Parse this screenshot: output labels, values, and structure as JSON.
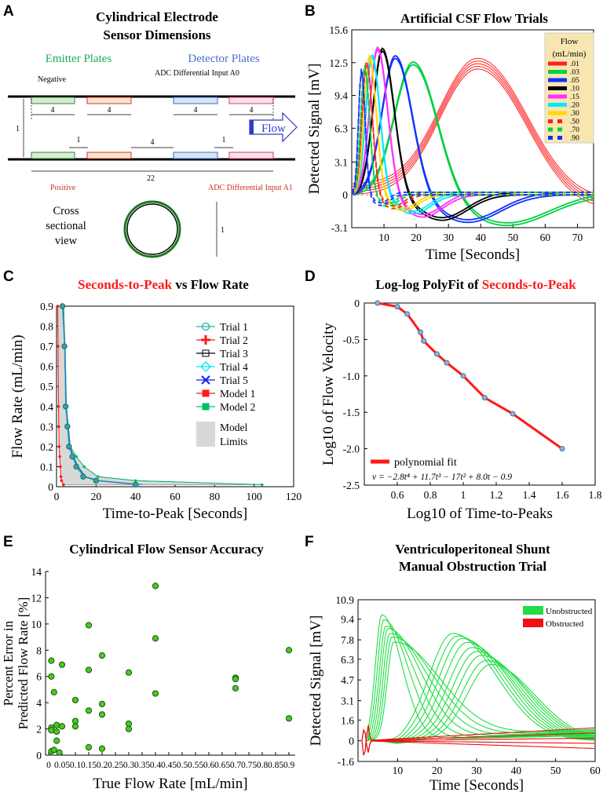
{
  "colors": {
    "green": "#00c853",
    "red": "#ff1a1a",
    "blue": "#1a1aff",
    "teal": "#20b2aa",
    "cyan": "#00e5ff",
    "gray": "#d8d8d8"
  },
  "panelA": {
    "label": "A",
    "title": [
      "Cylindrical Electrode",
      "Sensor Dimensions"
    ],
    "emitter": "Emitter Plates",
    "detector": "Detector  Plates",
    "negative": "Negative",
    "adc0": "ADC Differential Input A0",
    "positive": "Positive",
    "adc1": "ADC Differential Input A1",
    "flow": "Flow",
    "d4": "4",
    "d1": "1",
    "d22": "22",
    "cross": [
      "Cross",
      "sectional",
      "view"
    ]
  },
  "panelB": {
    "label": "B",
    "chart_data": {
      "type": "line",
      "title": "Artificial CSF Flow Trials",
      "xlabel": "Time [Seconds]",
      "ylabel": "Detected Signal [mV]",
      "xlim": [
        0,
        75
      ],
      "ylim": [
        -3.1,
        15.6
      ],
      "xticks": [
        "10",
        "20",
        "30",
        "40",
        "50",
        "60",
        "70"
      ],
      "yticks": [
        "-3.1",
        "0",
        "3.1",
        "6.3",
        "9.4",
        "12.5",
        "15.6"
      ],
      "legend_title": [
        "Flow",
        "(mL/min)"
      ],
      "series": [
        {
          "name": ".01",
          "peak_t": 39,
          "peak": 11.9,
          "trough_t": 70,
          "trough": -1.6
        },
        {
          "name": ".03",
          "peak_t": 19,
          "peak": 12.3,
          "trough_t": 48,
          "trough": -2.9
        },
        {
          "name": ".05",
          "peak_t": 13.5,
          "peak": 12.9,
          "trough_t": 36,
          "trough": -2.6
        },
        {
          "name": ".10",
          "peak_t": 9.5,
          "peak": 13.6,
          "trough_t": 28,
          "trough": -2.4
        },
        {
          "name": ".15",
          "peak_t": 8,
          "peak": 13.7,
          "trough_t": 22,
          "trough": -2.1
        },
        {
          "name": ".20",
          "peak_t": 6.3,
          "peak": 13,
          "trough_t": 19,
          "trough": -1.8
        },
        {
          "name": ".30",
          "peak_t": 5.5,
          "peak": 12.9,
          "trough_t": 16,
          "trough": -1.5
        },
        {
          "name": ".50",
          "peak_t": 4.6,
          "peak": 12.4,
          "trough_t": 13,
          "trough": -1.3
        },
        {
          "name": ".70",
          "peak_t": 4,
          "peak": 12,
          "trough_t": 11,
          "trough": -1.1
        },
        {
          "name": ".90",
          "peak_t": 3,
          "peak": 11.7,
          "trough_t": 9,
          "trough": -1.0
        }
      ]
    }
  },
  "panelC": {
    "label": "C",
    "chart_data": {
      "type": "scatter",
      "title_red": "Seconds-to-Peak",
      "title_black": " vs Flow Rate",
      "xlabel": "Time-to-Peak [Seconds]",
      "ylabel": "Flow Rate (mL/min)",
      "xlim": [
        0,
        120
      ],
      "ylim": [
        0,
        0.9
      ],
      "xticks": [
        "0",
        "20",
        "40",
        "60",
        "80",
        "100",
        "120"
      ],
      "yticks": [
        "0",
        "0.1",
        "0.2",
        "0.3",
        "0.4",
        "0.5",
        "0.6",
        "0.7",
        "0.8",
        "0.9"
      ],
      "legend": [
        "Trial 1",
        "Trial 2",
        "Trial 3",
        "Trial 4",
        "Trial 5",
        "Model 1",
        "Model 2",
        "Model",
        "Limits"
      ],
      "trial_points": {
        "x": [
          40,
          20,
          13.5,
          10,
          8,
          6.3,
          5.5,
          4.6,
          4,
          3
        ],
        "y": [
          0.01,
          0.03,
          0.05,
          0.1,
          0.15,
          0.2,
          0.3,
          0.4,
          0.7,
          0.9
        ]
      },
      "model_low": {
        "x": [
          3.5,
          2.5,
          2.2,
          1.9,
          1.6,
          1.3,
          1.1,
          1.0,
          0.8,
          0.6
        ],
        "y": [
          0.01,
          0.03,
          0.05,
          0.1,
          0.15,
          0.2,
          0.3,
          0.4,
          0.7,
          0.9
        ]
      },
      "model_high": {
        "x": [
          104,
          40,
          21,
          14,
          10,
          7,
          6,
          5,
          4.2,
          3.6
        ],
        "y": [
          0.01,
          0.03,
          0.05,
          0.1,
          0.15,
          0.2,
          0.3,
          0.4,
          0.7,
          0.9
        ]
      }
    }
  },
  "panelD": {
    "label": "D",
    "chart_data": {
      "type": "line",
      "title_black": "Log-log PolyFit of ",
      "title_red": "Seconds-to-Peak",
      "xlabel": "Log10 of Time-to-Peaks",
      "ylabel": "Log10 of Flow Velocity",
      "xlim": [
        0.4,
        1.8
      ],
      "ylim": [
        -2.5,
        0
      ],
      "xticks": [
        "0.6",
        "0.8",
        "1",
        "1.2",
        "1.4",
        "1.6",
        "1.8"
      ],
      "yticks": [
        "0",
        "-0.5",
        "-1.0",
        "-1.5",
        "-2.0",
        "-2.5"
      ],
      "points": {
        "x": [
          0.48,
          0.6,
          0.66,
          0.74,
          0.76,
          0.84,
          0.9,
          1.0,
          1.13,
          1.3,
          1.6
        ],
        "y": [
          0,
          -0.05,
          -0.15,
          -0.4,
          -0.52,
          -0.7,
          -0.82,
          -1.0,
          -1.3,
          -1.52,
          -2.0
        ]
      },
      "legend": "polynomial fit",
      "equation": "v = −2.8t⁴ + 11.7t³ − 17t² + 8.0t − 0.9"
    }
  },
  "panelE": {
    "label": "E",
    "chart_data": {
      "type": "scatter",
      "title": "Cylindrical Flow Sensor Accuracy",
      "xlabel": "True Flow Rate [mL/min]",
      "ylabel": [
        "Percent Error in",
        "Predicted Flow Rate [%]"
      ],
      "xlim": [
        0,
        0.9
      ],
      "ylim": [
        0,
        14
      ],
      "xticks": [
        "0",
        "0.05",
        "0.1",
        "0.15",
        "0.2",
        "0.25",
        "0.3",
        "0.35",
        "0.4",
        "0.45",
        "0.5",
        "0.55",
        "0.6",
        "0.65",
        "0.7",
        "0.75",
        "0.8",
        "0.85",
        "0.9"
      ],
      "yticks": [
        "0",
        "2",
        "4",
        "6",
        "8",
        "10",
        "12",
        "14"
      ],
      "x": [
        0.01,
        0.01,
        0.01,
        0.01,
        0.01,
        0.02,
        0.02,
        0.03,
        0.03,
        0.03,
        0.04,
        0.05,
        0.05,
        0.1,
        0.1,
        0.1,
        0.15,
        0.15,
        0.15,
        0.15,
        0.2,
        0.2,
        0.2,
        0.2,
        0.3,
        0.3,
        0.3,
        0.4,
        0.4,
        0.4,
        0.7,
        0.7,
        0.7,
        0.9,
        0.9
      ],
      "y": [
        7.2,
        6,
        2.1,
        1.9,
        0.3,
        4.8,
        0.4,
        2.3,
        1.8,
        1.1,
        0.2,
        2.2,
        6.9,
        4.2,
        2.6,
        2.2,
        9.9,
        6.5,
        3.4,
        0.6,
        7.6,
        3.9,
        3.1,
        0.5,
        6.3,
        2.4,
        2,
        12.9,
        8.9,
        4.7,
        5.9,
        5.8,
        5.1,
        8,
        2.8
      ]
    }
  },
  "panelF": {
    "label": "F",
    "chart_data": {
      "type": "line",
      "title": [
        "Ventriculoperitoneal Shunt",
        "Manual Obstruction Trial"
      ],
      "xlabel": "Time [Seconds]",
      "ylabel": "Detected Signal [mV]",
      "xlim": [
        0,
        60
      ],
      "ylim": [
        -1.6,
        10.9
      ],
      "xticks": [
        "10",
        "20",
        "30",
        "40",
        "50",
        "60"
      ],
      "yticks": [
        "-1.6",
        "0",
        "1.6",
        "3.1",
        "4.7",
        "6.3",
        "7.8",
        "9.4",
        "10.9"
      ],
      "legend": [
        "Unobstructed",
        "Obstructed"
      ],
      "unobstructed_fast": {
        "peak_t": 6,
        "peaks": [
          9.7,
          9.3,
          8.8,
          8.6,
          8.2,
          7.9,
          7.5
        ]
      },
      "unobstructed_slow": {
        "peak_t_range": [
          24,
          34
        ],
        "peaks": [
          8.3,
          8.1,
          7.9,
          7.6,
          7.2,
          6.9,
          6.6,
          6.2,
          5.9
        ]
      },
      "obstructed": {
        "end_values": [
          1.0,
          0.6,
          0.2,
          -0.2,
          -0.6
        ]
      }
    }
  }
}
